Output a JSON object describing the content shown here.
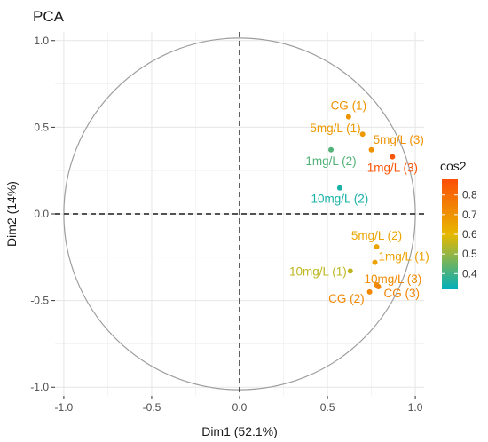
{
  "chart_data": {
    "type": "scatter",
    "title": "PCA",
    "xlabel": "Dim1 (52.1%)",
    "ylabel": "Dim2 (14%)",
    "xlim": [
      -1.05,
      1.05
    ],
    "ylim": [
      -1.05,
      1.05
    ],
    "x_ticks": [
      -1.0,
      -0.5,
      0.0,
      0.5,
      1.0
    ],
    "y_ticks": [
      -1.0,
      -0.5,
      0.0,
      0.5,
      1.0
    ],
    "x_tick_labels": [
      "-1.0",
      "-0.5",
      "0.0",
      "0.5",
      "1.0"
    ],
    "y_tick_labels": [
      "-1.0",
      "-0.5",
      "0.0",
      "0.5",
      "1.0"
    ],
    "grid": true,
    "unit_circle": true,
    "reference_lines": {
      "x": 0,
      "y": 0,
      "style": "dashed"
    },
    "points": [
      {
        "label": "CG (1)",
        "x": 0.62,
        "y": 0.56,
        "cos2": 0.7
      },
      {
        "label": "5mg/L (1)",
        "x": 0.7,
        "y": 0.46,
        "cos2": 0.68
      },
      {
        "label": "5mg/L (3)",
        "x": 0.75,
        "y": 0.37,
        "cos2": 0.7
      },
      {
        "label": "1mg/L (3)",
        "x": 0.87,
        "y": 0.33,
        "cos2": 0.86
      },
      {
        "label": "1mg/L (2)",
        "x": 0.52,
        "y": 0.37,
        "cos2": 0.42
      },
      {
        "label": "10mg/L (2)",
        "x": 0.57,
        "y": 0.15,
        "cos2": 0.35
      },
      {
        "label": "5mg/L (2)",
        "x": 0.78,
        "y": -0.19,
        "cos2": 0.65
      },
      {
        "label": "1mg/L (1)",
        "x": 0.77,
        "y": -0.28,
        "cos2": 0.66
      },
      {
        "label": "10mg/L (1)",
        "x": 0.63,
        "y": -0.33,
        "cos2": 0.55
      },
      {
        "label": "10mg/L (3)",
        "x": 0.78,
        "y": -0.41,
        "cos2": 0.72
      },
      {
        "label": "CG (3)",
        "x": 0.79,
        "y": -0.42,
        "cos2": 0.74
      },
      {
        "label": "CG (2)",
        "x": 0.74,
        "y": -0.45,
        "cos2": 0.73
      }
    ],
    "legend": {
      "title": "cos2",
      "placement": "right",
      "range": [
        0.32,
        0.88
      ],
      "ticks": [
        0.4,
        0.5,
        0.6,
        0.7,
        0.8
      ],
      "tick_labels": [
        "0.4",
        "0.5",
        "0.6",
        "0.7",
        "0.8"
      ],
      "gradient": [
        "#00AFBB",
        "#E7B800",
        "#FC4E07"
      ]
    }
  }
}
